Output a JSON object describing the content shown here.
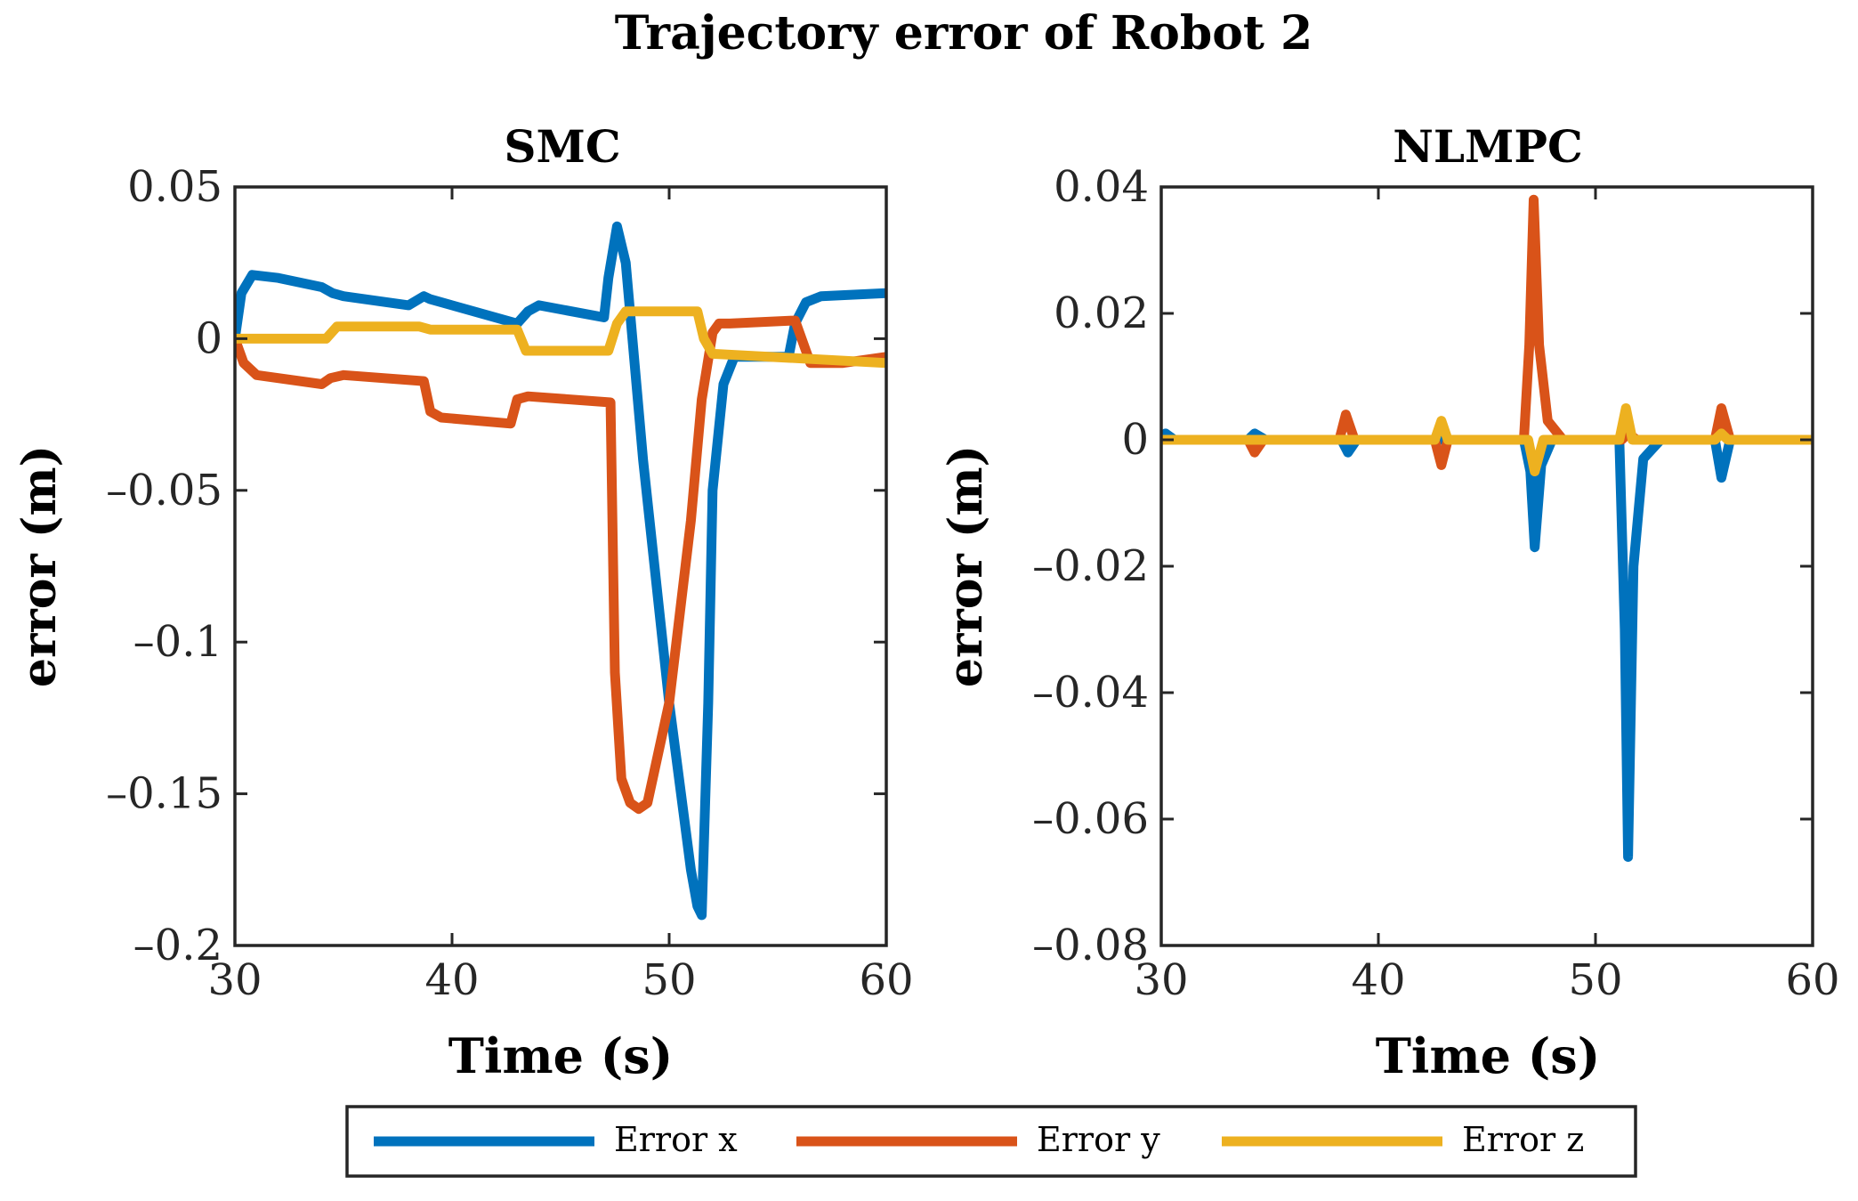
{
  "figure": {
    "title": "Trajectory error of Robot 2"
  },
  "colors": {
    "error_x": "#0072BD",
    "error_y": "#D95319",
    "error_z": "#EDB120",
    "axis": "#262626",
    "text": "#000000"
  },
  "legend": {
    "placement": "bottom-center",
    "entries": [
      {
        "label": "Error x",
        "color_key": "error_x"
      },
      {
        "label": "Error y",
        "color_key": "error_y"
      },
      {
        "label": "Error z",
        "color_key": "error_z"
      }
    ]
  },
  "chart_data": [
    {
      "type": "line",
      "title": "SMC",
      "xlabel": "Time (s)",
      "ylabel": "error (m)",
      "xlim": [
        30,
        60
      ],
      "ylim": [
        -0.2,
        0.05
      ],
      "xticks": [
        30,
        40,
        50,
        60
      ],
      "xtick_labels": [
        "30",
        "40",
        "50",
        "60"
      ],
      "yticks": [
        0.05,
        0,
        -0.05,
        -0.1,
        -0.15,
        -0.2
      ],
      "ytick_labels": [
        "0.05",
        "0",
        "–0.05",
        "–0.1",
        "–0.15",
        "–0.2"
      ],
      "series": [
        {
          "name": "Error x",
          "color_key": "error_x",
          "x": [
            30,
            30.3,
            30.8,
            32,
            34,
            34.5,
            35,
            38,
            38.7,
            39,
            43,
            43.5,
            44,
            47,
            47.2,
            47.6,
            48,
            48.8,
            50,
            51,
            51.3,
            51.5,
            51.8,
            52,
            52.5,
            53,
            55.5,
            55.8,
            56.3,
            57,
            60
          ],
          "y": [
            0,
            0.015,
            0.021,
            0.02,
            0.017,
            0.015,
            0.014,
            0.011,
            0.014,
            0.013,
            0.005,
            0.009,
            0.011,
            0.007,
            0.02,
            0.037,
            0.025,
            -0.04,
            -0.12,
            -0.175,
            -0.187,
            -0.19,
            -0.12,
            -0.05,
            -0.015,
            -0.006,
            -0.006,
            0.005,
            0.012,
            0.014,
            0.015
          ]
        },
        {
          "name": "Error y",
          "color_key": "error_y",
          "x": [
            30,
            30.4,
            31,
            34,
            34.4,
            35,
            38.7,
            39,
            39.5,
            42.7,
            43,
            43.5,
            47.3,
            47.5,
            47.8,
            48.2,
            48.6,
            49,
            50,
            51,
            51.5,
            52,
            52.3,
            52.8,
            55.8,
            56,
            56.5,
            58,
            60
          ],
          "y": [
            0,
            -0.008,
            -0.012,
            -0.015,
            -0.013,
            -0.012,
            -0.014,
            -0.024,
            -0.026,
            -0.028,
            -0.02,
            -0.019,
            -0.021,
            -0.11,
            -0.145,
            -0.153,
            -0.155,
            -0.153,
            -0.12,
            -0.06,
            -0.02,
            0.002,
            0.005,
            0.005,
            0.006,
            0.002,
            -0.008,
            -0.008,
            -0.006
          ]
        },
        {
          "name": "Error z",
          "color_key": "error_z",
          "x": [
            30,
            34.2,
            34.7,
            38.5,
            39,
            43,
            43.4,
            47.2,
            47.6,
            48,
            51.3,
            51.6,
            52,
            60
          ],
          "y": [
            0,
            0,
            0.004,
            0.004,
            0.003,
            0.003,
            -0.004,
            -0.004,
            0.005,
            0.009,
            0.009,
            0.0,
            -0.005,
            -0.008
          ]
        }
      ]
    },
    {
      "type": "line",
      "title": "NLMPC",
      "xlabel": "Time (s)",
      "ylabel": "error (m)",
      "xlim": [
        30,
        60
      ],
      "ylim": [
        -0.08,
        0.04
      ],
      "xticks": [
        30,
        40,
        50,
        60
      ],
      "xtick_labels": [
        "30",
        "40",
        "50",
        "60"
      ],
      "yticks": [
        0.04,
        0.02,
        0,
        -0.02,
        -0.04,
        -0.06,
        -0.08
      ],
      "ytick_labels": [
        "0.04",
        "0.02",
        "0",
        "–0.02",
        "–0.04",
        "–0.06",
        "–0.08"
      ],
      "series": [
        {
          "name": "Error x",
          "color_key": "error_x",
          "x": [
            30,
            30.2,
            30.6,
            34,
            34.3,
            34.8,
            38.3,
            38.6,
            39,
            46.7,
            47,
            47.2,
            47.5,
            48,
            51.1,
            51.35,
            51.5,
            51.75,
            52.2,
            53,
            55.5,
            55.8,
            56.2,
            60
          ],
          "y": [
            0,
            0.001,
            0,
            0,
            0.001,
            0,
            0,
            -0.002,
            0,
            0,
            -0.005,
            -0.017,
            -0.004,
            0,
            0,
            -0.03,
            -0.066,
            -0.02,
            -0.003,
            0,
            0,
            -0.006,
            0,
            0
          ]
        },
        {
          "name": "Error y",
          "color_key": "error_y",
          "x": [
            30,
            34,
            34.3,
            34.7,
            38.2,
            38.5,
            38.9,
            42.6,
            42.9,
            43.2,
            46.7,
            46.95,
            47.15,
            47.4,
            47.8,
            48.5,
            51.2,
            51.5,
            51.9,
            55.5,
            55.8,
            56.2,
            60
          ],
          "y": [
            0,
            0,
            -0.002,
            0,
            0,
            0.004,
            0,
            0,
            -0.004,
            0,
            0,
            0.015,
            0.038,
            0.015,
            0.003,
            0,
            0,
            0.001,
            0,
            0,
            0.005,
            0,
            0
          ]
        },
        {
          "name": "Error z",
          "color_key": "error_z",
          "x": [
            30,
            42.6,
            42.9,
            43.2,
            46.9,
            47.2,
            47.6,
            51.1,
            51.4,
            51.7,
            55.5,
            55.8,
            56.1,
            60
          ],
          "y": [
            0,
            0,
            0.003,
            0,
            0,
            -0.005,
            0,
            0,
            0.005,
            0,
            0,
            0.001,
            0,
            0
          ]
        }
      ]
    }
  ]
}
